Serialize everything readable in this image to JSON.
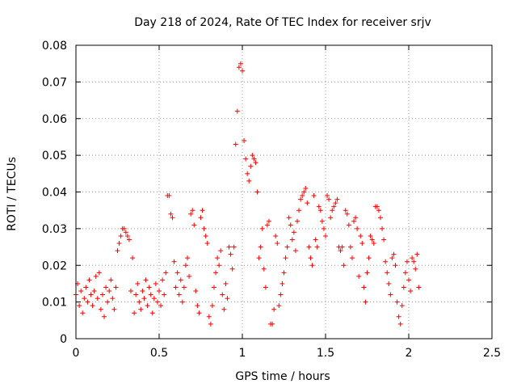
{
  "chart_data": {
    "type": "scatter",
    "title": "Day 218 of 2024, Rate Of TEC Index for receiver srjv",
    "xlabel": "GPS time / hours",
    "ylabel": "ROTI / TECUs",
    "xlim": [
      0,
      2.5
    ],
    "ylim": [
      0,
      0.08
    ],
    "xticks": [
      0,
      0.5,
      1,
      1.5,
      2,
      2.5
    ],
    "xtick_labels": [
      "0",
      "0.5",
      "1",
      "1.5",
      "2",
      "2.5"
    ],
    "yticks": [
      0,
      0.01,
      0.02,
      0.03,
      0.04,
      0.05,
      0.06,
      0.07,
      0.08
    ],
    "ytick_labels": [
      "0",
      "0.01",
      "0.02",
      "0.03",
      "0.04",
      "0.05",
      "0.06",
      "0.07",
      "0.08"
    ],
    "grid": true,
    "marker": "+",
    "color": "#ff0000",
    "series": [
      {
        "name": "ROTI",
        "points": [
          [
            0.0,
            0.012
          ],
          [
            0.01,
            0.015
          ],
          [
            0.02,
            0.009
          ],
          [
            0.03,
            0.013
          ],
          [
            0.04,
            0.007
          ],
          [
            0.05,
            0.011
          ],
          [
            0.06,
            0.014
          ],
          [
            0.07,
            0.01
          ],
          [
            0.08,
            0.016
          ],
          [
            0.09,
            0.012
          ],
          [
            0.1,
            0.009
          ],
          [
            0.11,
            0.013
          ],
          [
            0.12,
            0.017
          ],
          [
            0.13,
            0.011
          ],
          [
            0.14,
            0.018
          ],
          [
            0.15,
            0.008
          ],
          [
            0.16,
            0.012
          ],
          [
            0.17,
            0.006
          ],
          [
            0.18,
            0.014
          ],
          [
            0.19,
            0.01
          ],
          [
            0.2,
            0.013
          ],
          [
            0.21,
            0.016
          ],
          [
            0.22,
            0.011
          ],
          [
            0.23,
            0.008
          ],
          [
            0.24,
            0.014
          ],
          [
            0.25,
            0.024
          ],
          [
            0.26,
            0.026
          ],
          [
            0.27,
            0.028
          ],
          [
            0.28,
            0.03
          ],
          [
            0.29,
            0.03
          ],
          [
            0.3,
            0.029
          ],
          [
            0.31,
            0.028
          ],
          [
            0.32,
            0.027
          ],
          [
            0.33,
            0.013
          ],
          [
            0.34,
            0.022
          ],
          [
            0.35,
            0.007
          ],
          [
            0.36,
            0.012
          ],
          [
            0.37,
            0.015
          ],
          [
            0.38,
            0.01
          ],
          [
            0.39,
            0.008
          ],
          [
            0.4,
            0.013
          ],
          [
            0.41,
            0.011
          ],
          [
            0.42,
            0.016
          ],
          [
            0.43,
            0.009
          ],
          [
            0.44,
            0.014
          ],
          [
            0.45,
            0.012
          ],
          [
            0.46,
            0.007
          ],
          [
            0.47,
            0.011
          ],
          [
            0.48,
            0.015
          ],
          [
            0.49,
            0.01
          ],
          [
            0.5,
            0.013
          ],
          [
            0.51,
            0.009
          ],
          [
            0.52,
            0.016
          ],
          [
            0.53,
            0.012
          ],
          [
            0.54,
            0.018
          ],
          [
            0.55,
            0.039
          ],
          [
            0.56,
            0.039
          ],
          [
            0.57,
            0.034
          ],
          [
            0.58,
            0.033
          ],
          [
            0.59,
            0.021
          ],
          [
            0.6,
            0.014
          ],
          [
            0.61,
            0.018
          ],
          [
            0.62,
            0.012
          ],
          [
            0.63,
            0.016
          ],
          [
            0.64,
            0.01
          ],
          [
            0.65,
            0.014
          ],
          [
            0.66,
            0.02
          ],
          [
            0.67,
            0.022
          ],
          [
            0.68,
            0.017
          ],
          [
            0.69,
            0.034
          ],
          [
            0.7,
            0.035
          ],
          [
            0.71,
            0.031
          ],
          [
            0.72,
            0.013
          ],
          [
            0.73,
            0.009
          ],
          [
            0.74,
            0.007
          ],
          [
            0.75,
            0.033
          ],
          [
            0.76,
            0.035
          ],
          [
            0.77,
            0.03
          ],
          [
            0.78,
            0.028
          ],
          [
            0.79,
            0.026
          ],
          [
            0.8,
            0.006
          ],
          [
            0.81,
            0.004
          ],
          [
            0.82,
            0.009
          ],
          [
            0.83,
            0.014
          ],
          [
            0.84,
            0.018
          ],
          [
            0.85,
            0.022
          ],
          [
            0.86,
            0.02
          ],
          [
            0.87,
            0.024
          ],
          [
            0.88,
            0.012
          ],
          [
            0.89,
            0.008
          ],
          [
            0.9,
            0.015
          ],
          [
            0.91,
            0.011
          ],
          [
            0.92,
            0.025
          ],
          [
            0.93,
            0.023
          ],
          [
            0.94,
            0.019
          ],
          [
            0.95,
            0.025
          ],
          [
            0.96,
            0.053
          ],
          [
            0.97,
            0.062
          ],
          [
            0.98,
            0.074
          ],
          [
            0.99,
            0.075
          ],
          [
            1.0,
            0.073
          ],
          [
            1.01,
            0.054
          ],
          [
            1.02,
            0.049
          ],
          [
            1.03,
            0.045
          ],
          [
            1.04,
            0.043
          ],
          [
            1.05,
            0.047
          ],
          [
            1.06,
            0.05
          ],
          [
            1.07,
            0.049
          ],
          [
            1.08,
            0.048
          ],
          [
            1.09,
            0.04
          ],
          [
            1.1,
            0.022
          ],
          [
            1.11,
            0.025
          ],
          [
            1.12,
            0.03
          ],
          [
            1.13,
            0.019
          ],
          [
            1.14,
            0.014
          ],
          [
            1.15,
            0.031
          ],
          [
            1.16,
            0.032
          ],
          [
            1.17,
            0.004
          ],
          [
            1.18,
            0.004
          ],
          [
            1.19,
            0.008
          ],
          [
            1.2,
            0.028
          ],
          [
            1.21,
            0.026
          ],
          [
            1.22,
            0.009
          ],
          [
            1.23,
            0.012
          ],
          [
            1.24,
            0.015
          ],
          [
            1.25,
            0.018
          ],
          [
            1.26,
            0.022
          ],
          [
            1.27,
            0.025
          ],
          [
            1.28,
            0.033
          ],
          [
            1.29,
            0.031
          ],
          [
            1.3,
            0.027
          ],
          [
            1.31,
            0.029
          ],
          [
            1.32,
            0.024
          ],
          [
            1.33,
            0.032
          ],
          [
            1.34,
            0.035
          ],
          [
            1.35,
            0.038
          ],
          [
            1.36,
            0.039
          ],
          [
            1.37,
            0.04
          ],
          [
            1.38,
            0.041
          ],
          [
            1.39,
            0.037
          ],
          [
            1.4,
            0.025
          ],
          [
            1.41,
            0.022
          ],
          [
            1.42,
            0.02
          ],
          [
            1.43,
            0.039
          ],
          [
            1.44,
            0.027
          ],
          [
            1.45,
            0.025
          ],
          [
            1.46,
            0.036
          ],
          [
            1.47,
            0.035
          ],
          [
            1.48,
            0.032
          ],
          [
            1.49,
            0.03
          ],
          [
            1.5,
            0.028
          ],
          [
            1.51,
            0.039
          ],
          [
            1.52,
            0.038
          ],
          [
            1.53,
            0.033
          ],
          [
            1.54,
            0.035
          ],
          [
            1.55,
            0.036
          ],
          [
            1.56,
            0.037
          ],
          [
            1.57,
            0.038
          ],
          [
            1.58,
            0.025
          ],
          [
            1.59,
            0.024
          ],
          [
            1.6,
            0.025
          ],
          [
            1.61,
            0.02
          ],
          [
            1.62,
            0.035
          ],
          [
            1.63,
            0.034
          ],
          [
            1.64,
            0.031
          ],
          [
            1.65,
            0.025
          ],
          [
            1.66,
            0.022
          ],
          [
            1.67,
            0.032
          ],
          [
            1.68,
            0.033
          ],
          [
            1.69,
            0.03
          ],
          [
            1.7,
            0.017
          ],
          [
            1.71,
            0.028
          ],
          [
            1.72,
            0.026
          ],
          [
            1.73,
            0.014
          ],
          [
            1.74,
            0.01
          ],
          [
            1.75,
            0.018
          ],
          [
            1.76,
            0.022
          ],
          [
            1.77,
            0.028
          ],
          [
            1.78,
            0.027
          ],
          [
            1.79,
            0.026
          ],
          [
            1.8,
            0.036
          ],
          [
            1.81,
            0.036
          ],
          [
            1.82,
            0.035
          ],
          [
            1.83,
            0.033
          ],
          [
            1.84,
            0.03
          ],
          [
            1.85,
            0.027
          ],
          [
            1.86,
            0.021
          ],
          [
            1.87,
            0.018
          ],
          [
            1.88,
            0.015
          ],
          [
            1.89,
            0.012
          ],
          [
            1.9,
            0.022
          ],
          [
            1.91,
            0.023
          ],
          [
            1.92,
            0.02
          ],
          [
            1.93,
            0.01
          ],
          [
            1.94,
            0.006
          ],
          [
            1.95,
            0.004
          ],
          [
            1.96,
            0.009
          ],
          [
            1.97,
            0.014
          ],
          [
            1.98,
            0.018
          ],
          [
            1.99,
            0.021
          ],
          [
            2.0,
            0.016
          ],
          [
            2.01,
            0.013
          ],
          [
            2.02,
            0.022
          ],
          [
            2.03,
            0.021
          ],
          [
            2.04,
            0.019
          ],
          [
            2.05,
            0.023
          ],
          [
            2.06,
            0.014
          ]
        ]
      }
    ]
  }
}
